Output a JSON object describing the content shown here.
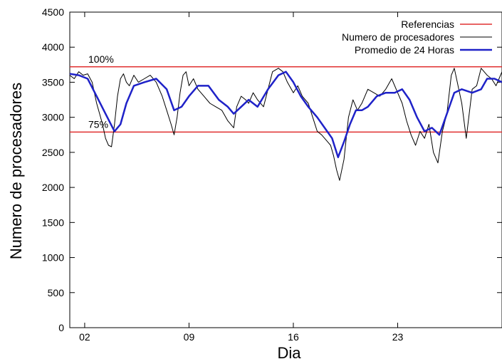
{
  "chart_data": {
    "type": "line",
    "title": "",
    "xlabel": "Dia",
    "ylabel": "Numero de procesadores",
    "xlim": [
      0,
      29
    ],
    "ylim": [
      0,
      4500
    ],
    "x_ticks": [
      {
        "value": 1,
        "label": "02"
      },
      {
        "value": 8,
        "label": "09"
      },
      {
        "value": 15,
        "label": "16"
      },
      {
        "value": 22,
        "label": "23"
      }
    ],
    "y_ticks": [
      0,
      500,
      1000,
      1500,
      2000,
      2500,
      3000,
      3500,
      4000,
      4500
    ],
    "legend_position": "top-right",
    "grid": false,
    "references": {
      "name": "Referencias",
      "color": "#e03030",
      "lines": [
        {
          "value": 3720,
          "label": "100%"
        },
        {
          "value": 2790,
          "label": "75%"
        }
      ]
    },
    "series": [
      {
        "name": "Numero de procesadores",
        "color": "#000000",
        "x": [
          0,
          0.3,
          0.6,
          0.9,
          1.2,
          1.5,
          1.8,
          2.0,
          2.2,
          2.4,
          2.6,
          2.8,
          3.0,
          3.2,
          3.4,
          3.6,
          3.8,
          4.0,
          4.3,
          4.6,
          5.0,
          5.4,
          5.8,
          6.2,
          6.5,
          6.8,
          7.0,
          7.2,
          7.4,
          7.6,
          7.8,
          8.0,
          8.3,
          8.6,
          9.0,
          9.4,
          9.8,
          10.2,
          10.6,
          11.0,
          11.2,
          11.5,
          11.8,
          12.0,
          12.3,
          12.6,
          13.0,
          13.3,
          13.6,
          14.0,
          14.3,
          14.6,
          15.0,
          15.3,
          15.6,
          16.0,
          16.3,
          16.6,
          16.9,
          17.1,
          17.3,
          17.5,
          17.7,
          17.9,
          18.1,
          18.4,
          18.7,
          19.0,
          19.3,
          19.6,
          20.0,
          20.4,
          20.8,
          21.2,
          21.6,
          22.0,
          22.3,
          22.6,
          22.9,
          23.2,
          23.5,
          23.8,
          24.1,
          24.4,
          24.7,
          25.0,
          25.3,
          25.6,
          25.8,
          26.0,
          26.3,
          26.6,
          27.0,
          27.3,
          27.6,
          28.0,
          28.3,
          28.6,
          29.0
        ],
        "values": [
          3600,
          3550,
          3650,
          3600,
          3620,
          3500,
          3200,
          3050,
          2900,
          2700,
          2600,
          2580,
          2900,
          3300,
          3550,
          3620,
          3500,
          3450,
          3600,
          3500,
          3550,
          3600,
          3500,
          3300,
          3100,
          2900,
          2750,
          3000,
          3350,
          3600,
          3650,
          3450,
          3550,
          3400,
          3300,
          3200,
          3150,
          3100,
          2950,
          2850,
          3150,
          3300,
          3250,
          3200,
          3350,
          3250,
          3150,
          3400,
          3650,
          3700,
          3650,
          3500,
          3350,
          3450,
          3300,
          3200,
          3000,
          2800,
          2750,
          2700,
          2650,
          2600,
          2450,
          2250,
          2100,
          2400,
          3000,
          3250,
          3100,
          3200,
          3400,
          3350,
          3300,
          3400,
          3550,
          3350,
          3200,
          2950,
          2750,
          2600,
          2800,
          2700,
          2900,
          2500,
          2350,
          2800,
          3050,
          3600,
          3700,
          3500,
          3200,
          2700,
          3400,
          3450,
          3700,
          3600,
          3550,
          3450,
          3650
        ]
      },
      {
        "name": "Promedio de 24 Horas",
        "color": "#1f22c8",
        "x": [
          0,
          0.6,
          1.2,
          1.8,
          2.4,
          3.0,
          3.4,
          3.8,
          4.3,
          5.0,
          5.8,
          6.5,
          7.0,
          7.5,
          8.0,
          8.6,
          9.3,
          10.0,
          10.6,
          11.0,
          11.5,
          12.0,
          12.6,
          13.3,
          14.0,
          14.5,
          15.0,
          15.5,
          16.0,
          16.6,
          17.1,
          17.6,
          18.0,
          18.4,
          18.8,
          19.2,
          19.6,
          20.0,
          20.6,
          21.2,
          21.8,
          22.3,
          22.8,
          23.3,
          23.8,
          24.3,
          24.8,
          25.3,
          25.8,
          26.3,
          27.0,
          27.6,
          28.0,
          28.5,
          29.0
        ],
        "values": [
          3620,
          3600,
          3550,
          3300,
          3050,
          2800,
          2900,
          3200,
          3450,
          3500,
          3550,
          3400,
          3100,
          3150,
          3300,
          3450,
          3450,
          3250,
          3150,
          3050,
          3150,
          3250,
          3150,
          3400,
          3600,
          3650,
          3500,
          3300,
          3150,
          3000,
          2850,
          2700,
          2430,
          2650,
          2900,
          3100,
          3100,
          3150,
          3300,
          3350,
          3350,
          3400,
          3250,
          3000,
          2800,
          2850,
          2750,
          3050,
          3350,
          3400,
          3350,
          3400,
          3550,
          3550,
          3500
        ]
      }
    ]
  }
}
